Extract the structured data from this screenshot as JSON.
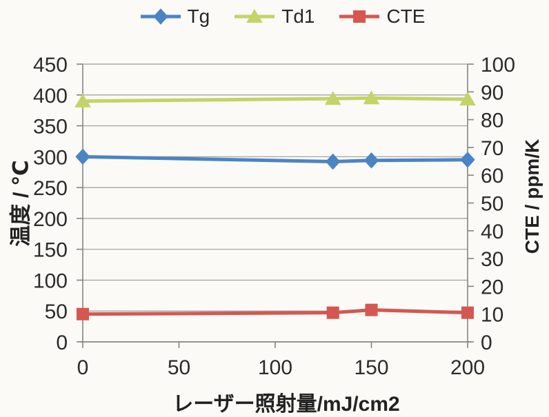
{
  "chart_data": {
    "type": "line",
    "title": "",
    "x": [
      0,
      130,
      150,
      200
    ],
    "series": [
      {
        "name": "Tg",
        "axis": "left",
        "marker": "diamond",
        "color": "#4b84c4",
        "values": [
          300,
          292,
          294,
          295
        ]
      },
      {
        "name": "Td1",
        "axis": "left",
        "marker": "triangle",
        "color": "#c3d468",
        "values": [
          390,
          394,
          395,
          393
        ]
      },
      {
        "name": "CTE",
        "axis": "right",
        "marker": "square",
        "color": "#d6574f",
        "values": [
          10,
          10.5,
          11.5,
          10.5
        ]
      }
    ],
    "x_axis": {
      "title": "レーザー照射量/mJ/cm2",
      "ticks": [
        0,
        50,
        100,
        150,
        200
      ],
      "range": [
        0,
        200
      ]
    },
    "left_axis": {
      "title": "温度 / ℃",
      "ticks": [
        450,
        400,
        350,
        300,
        250,
        200,
        150,
        100,
        50,
        0
      ],
      "range": [
        0,
        450
      ]
    },
    "right_axis": {
      "title": "CTE / ppm/K",
      "ticks": [
        100,
        90,
        80,
        70,
        60,
        50,
        40,
        30,
        20,
        10,
        0
      ],
      "range": [
        0,
        100
      ]
    },
    "legend": {
      "position": "top",
      "entries": [
        "Tg",
        "Td1",
        "CTE"
      ]
    },
    "grid": "horizontal-only",
    "colors": {
      "gridline": "#9b9b97",
      "axis": "#85857f",
      "text": "#2b2b2b",
      "background": "#fbfaf7"
    }
  }
}
